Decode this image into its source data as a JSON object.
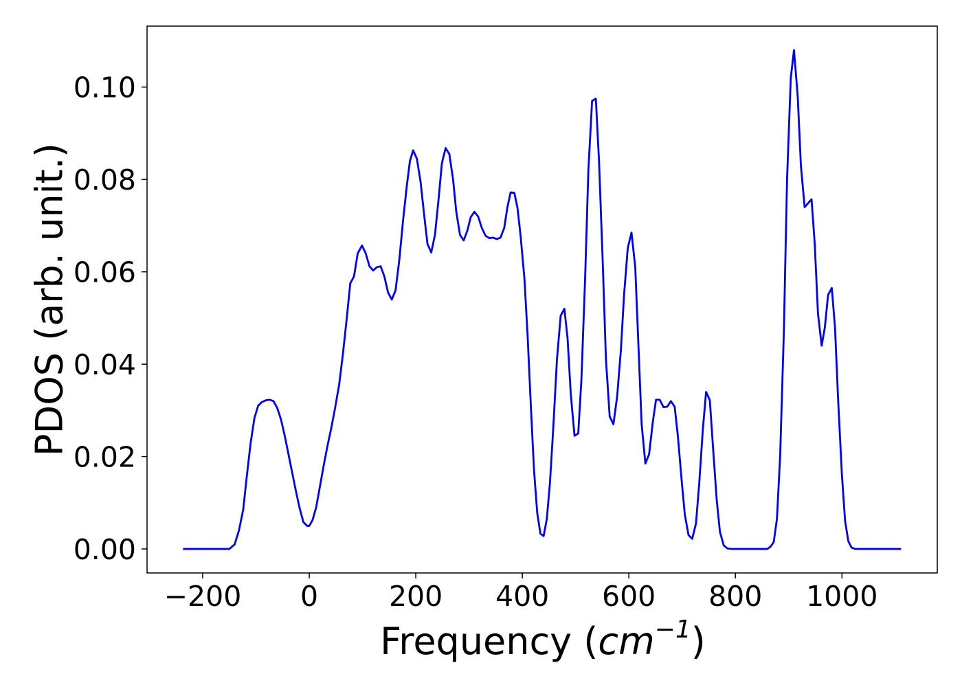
{
  "chart_data": {
    "type": "line",
    "xlabel": [
      "Frequency (",
      "cm",
      "−1",
      ")"
    ],
    "ylabel": "PDOS (arb. unit.)",
    "xlim": [
      -304.5,
      1179
    ],
    "ylim": [
      -0.0052,
      0.1132
    ],
    "xticks": [
      {
        "value": -200,
        "label": "−200"
      },
      0,
      200,
      400,
      600,
      800,
      1000
    ],
    "yticks": [
      {
        "value": 0,
        "label": "0.00"
      },
      {
        "value": 0.02,
        "label": "0.02"
      },
      {
        "value": 0.04,
        "label": "0.04"
      },
      {
        "value": 0.06,
        "label": "0.06"
      },
      {
        "value": 0.08,
        "label": "0.08"
      },
      {
        "value": 0.1,
        "label": "0.10"
      }
    ],
    "grid": false,
    "series": [
      {
        "color": "#0000ff",
        "x": [
          -237,
          -150,
          -140,
          -132,
          -124,
          -117,
          -110,
          -103,
          -96,
          -89,
          -81,
          -74,
          -67,
          -60,
          -53,
          -46,
          -39,
          -32,
          -25,
          -18,
          -11,
          -4,
          0,
          6,
          13,
          20,
          27,
          34,
          41,
          48,
          56,
          63,
          70,
          77,
          84,
          91,
          99,
          106,
          113,
          120,
          127,
          134,
          141,
          148,
          155,
          162,
          169,
          176,
          183,
          189,
          195,
          202,
          209,
          216,
          222,
          229,
          236,
          243,
          249,
          256,
          263,
          270,
          276,
          283,
          290,
          297,
          303,
          310,
          317,
          324,
          331,
          338,
          345,
          352,
          359,
          366,
          372,
          378,
          385,
          391,
          397,
          404,
          410,
          416,
          422,
          428,
          434,
          440,
          446,
          452,
          458,
          465,
          472,
          479,
          485,
          491,
          498,
          505,
          511,
          518,
          524,
          531,
          538,
          544,
          551,
          557,
          564,
          571,
          578,
          585,
          591,
          598,
          605,
          612,
          618,
          624,
          631,
          638,
          645,
          651,
          658,
          665,
          672,
          679,
          686,
          692,
          699,
          705,
          712,
          719,
          726,
          732,
          739,
          745,
          752,
          758,
          765,
          771,
          778,
          785,
          792,
          860,
          866,
          872,
          878,
          884,
          891,
          897,
          904,
          910,
          917,
          923,
          930,
          936,
          943,
          949,
          955,
          962,
          968,
          974,
          981,
          987,
          993,
          1000,
          1006,
          1012,
          1018,
          1025,
          1111
        ],
        "values": [
          0,
          0,
          0.001,
          0.004,
          0.0085,
          0.016,
          0.023,
          0.0283,
          0.031,
          0.0318,
          0.0322,
          0.0323,
          0.032,
          0.0305,
          0.028,
          0.0245,
          0.0205,
          0.0165,
          0.0125,
          0.0088,
          0.0058,
          0.005,
          0.005,
          0.0062,
          0.009,
          0.0135,
          0.018,
          0.0222,
          0.026,
          0.0302,
          0.0355,
          0.042,
          0.0495,
          0.0575,
          0.059,
          0.064,
          0.0657,
          0.064,
          0.0612,
          0.0603,
          0.061,
          0.0612,
          0.059,
          0.0555,
          0.054,
          0.056,
          0.0625,
          0.071,
          0.0785,
          0.084,
          0.0863,
          0.0845,
          0.0795,
          0.072,
          0.066,
          0.0642,
          0.068,
          0.076,
          0.0835,
          0.0868,
          0.0855,
          0.08,
          0.073,
          0.068,
          0.0668,
          0.069,
          0.0718,
          0.073,
          0.072,
          0.0695,
          0.0678,
          0.0673,
          0.0674,
          0.0671,
          0.0674,
          0.0695,
          0.074,
          0.0772,
          0.0771,
          0.0738,
          0.0675,
          0.0585,
          0.046,
          0.031,
          0.017,
          0.0078,
          0.0033,
          0.0028,
          0.0065,
          0.0145,
          0.026,
          0.041,
          0.0505,
          0.052,
          0.0455,
          0.0335,
          0.0245,
          0.025,
          0.0368,
          0.059,
          0.082,
          0.097,
          0.0975,
          0.084,
          0.062,
          0.041,
          0.0287,
          0.027,
          0.033,
          0.043,
          0.055,
          0.0652,
          0.0685,
          0.061,
          0.044,
          0.027,
          0.0185,
          0.0205,
          0.0275,
          0.0323,
          0.0323,
          0.0307,
          0.0308,
          0.032,
          0.0308,
          0.0245,
          0.015,
          0.0075,
          0.003,
          0.0022,
          0.0055,
          0.014,
          0.026,
          0.034,
          0.0322,
          0.022,
          0.0105,
          0.0037,
          0.0008,
          0.0001,
          0,
          0,
          0.0005,
          0.0015,
          0.0065,
          0.02,
          0.047,
          0.08,
          0.102,
          0.108,
          0.098,
          0.083,
          0.074,
          0.0748,
          0.0757,
          0.066,
          0.051,
          0.044,
          0.048,
          0.055,
          0.0565,
          0.048,
          0.032,
          0.016,
          0.006,
          0.0017,
          0.0003,
          0,
          0
        ]
      }
    ]
  }
}
